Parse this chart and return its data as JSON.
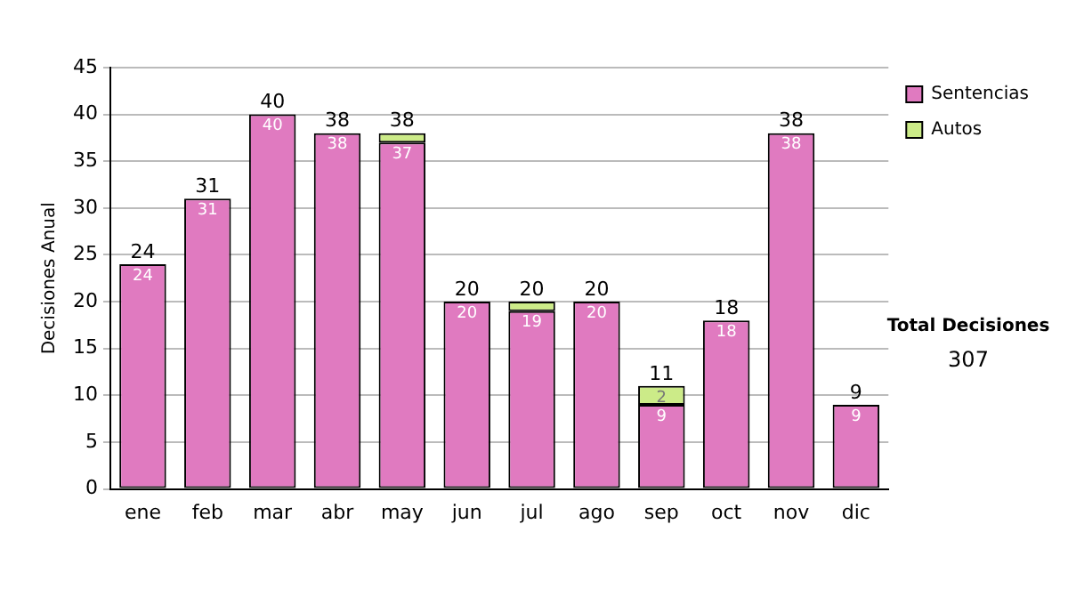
{
  "chart_data": {
    "type": "bar",
    "stacked": true,
    "ylabel": "Decisiones Anual",
    "categories": [
      "ene",
      "feb",
      "mar",
      "abr",
      "may",
      "jun",
      "jul",
      "ago",
      "sep",
      "oct",
      "nov",
      "dic"
    ],
    "series": [
      {
        "name": "Sentencias",
        "color": "#e07ac0",
        "values": [
          24,
          31,
          40,
          38,
          37,
          20,
          19,
          20,
          9,
          18,
          38,
          9
        ],
        "value_labels": [
          "24",
          "31",
          "40",
          "38",
          "37",
          "20",
          "19",
          "20",
          "9",
          "18",
          "38",
          "9"
        ]
      },
      {
        "name": "Autos",
        "color": "#cceb88",
        "values": [
          0,
          0,
          0,
          0,
          1,
          0,
          1,
          0,
          2,
          0,
          0,
          0
        ],
        "value_labels": [
          null,
          null,
          null,
          null,
          null,
          null,
          null,
          null,
          "2",
          null,
          null,
          null
        ]
      }
    ],
    "totals": [
      "24",
      "31",
      "40",
      "38",
      "38",
      "20",
      "20",
      "20",
      "11",
      "18",
      "38",
      "9"
    ],
    "ylim": [
      0,
      45
    ],
    "yticks": [
      0,
      5,
      10,
      15,
      20,
      25,
      30,
      35,
      40,
      45
    ],
    "grid": "y",
    "legend": "right",
    "annotations": [
      "Total Decisiones",
      "307"
    ]
  }
}
